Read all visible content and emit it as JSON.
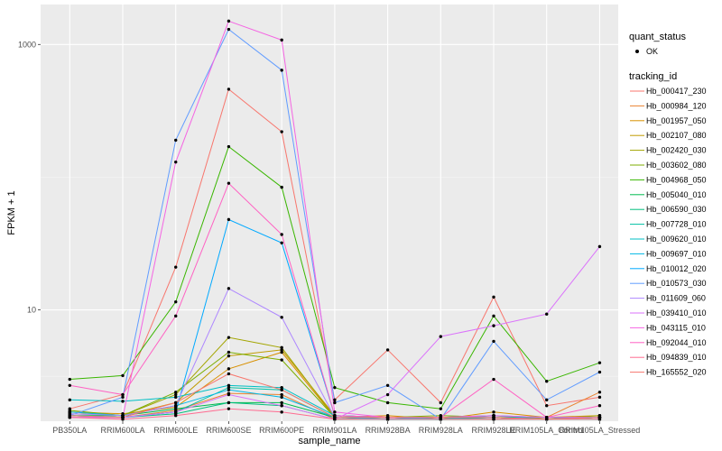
{
  "chart_data": {
    "type": "line",
    "xlabel": "sample_name",
    "ylabel": "FPKM + 1",
    "y_scale": "log10",
    "ylim": [
      1.45,
      2000
    ],
    "y_ticks": [
      {
        "value": 10,
        "label": "10"
      },
      {
        "value": 1000,
        "label": "1000"
      }
    ],
    "grid": true,
    "legend_position": "right",
    "categories": [
      "PB350LA",
      "RRIM600LA",
      "RRIM600LE",
      "RRIM600SE",
      "RRIM600PE",
      "RRIM901LA",
      "RRIM928BA",
      "RRIM928LA",
      "RRIM928LE",
      "RRIM105LA_Control",
      "RRIM105LA_Stressed"
    ],
    "quant_status_legend": {
      "title": "quant_status",
      "items": [
        "OK"
      ]
    },
    "legend_title": "tracking_id",
    "series": [
      {
        "name": "Hb_000417_230",
        "color": "#F8766D",
        "values": [
          1.8,
          2.3,
          21.0,
          460,
          220,
          2.1,
          5.0,
          2.0,
          12.5,
          1.9,
          2.2
        ]
      },
      {
        "name": "Hb_000984_120",
        "color": "#EA8331",
        "values": [
          1.6,
          1.55,
          1.75,
          2.35,
          2.3,
          1.5,
          1.55,
          1.5,
          1.5,
          1.55,
          2.4
        ]
      },
      {
        "name": "Hb_001957_050",
        "color": "#D89000",
        "values": [
          1.7,
          1.65,
          1.85,
          3.6,
          4.8,
          1.55,
          1.6,
          1.5,
          1.7,
          1.55,
          1.6
        ]
      },
      {
        "name": "Hb_002107_080",
        "color": "#C09B00",
        "values": [
          1.65,
          1.6,
          2.0,
          4.5,
          5.0,
          1.6,
          1.55,
          1.55,
          1.6,
          1.5,
          1.55
        ]
      },
      {
        "name": "Hb_002420_030",
        "color": "#A3A500",
        "values": [
          1.7,
          1.6,
          2.3,
          6.2,
          5.2,
          1.55,
          1.55,
          1.55,
          1.55,
          1.5,
          1.6
        ]
      },
      {
        "name": "Hb_003602_080",
        "color": "#7CAE00",
        "values": [
          1.75,
          1.6,
          2.4,
          4.8,
          4.2,
          1.55,
          1.55,
          1.6,
          1.55,
          1.55,
          1.55
        ]
      },
      {
        "name": "Hb_004968_050",
        "color": "#39B600",
        "values": [
          3.0,
          3.2,
          11.5,
          170,
          84,
          2.6,
          2.0,
          1.8,
          9.0,
          2.9,
          4.0
        ]
      },
      {
        "name": "Hb_005040_010",
        "color": "#00BB4E",
        "values": [
          1.6,
          1.6,
          1.8,
          2.0,
          2.0,
          1.55,
          1.55,
          1.5,
          1.55,
          1.5,
          1.55
        ]
      },
      {
        "name": "Hb_006590_030",
        "color": "#00BF7D",
        "values": [
          1.55,
          1.55,
          1.65,
          2.0,
          1.9,
          1.5,
          1.5,
          1.5,
          1.5,
          1.5,
          1.5
        ]
      },
      {
        "name": "Hb_007728_010",
        "color": "#00C1A3",
        "values": [
          1.6,
          1.55,
          1.7,
          2.6,
          2.5,
          1.55,
          1.5,
          1.5,
          1.55,
          1.5,
          1.55
        ]
      },
      {
        "name": "Hb_009620_010",
        "color": "#00BFC4",
        "values": [
          2.1,
          2.05,
          2.2,
          2.7,
          2.6,
          1.6,
          1.55,
          1.5,
          1.6,
          1.5,
          1.55
        ]
      },
      {
        "name": "Hb_009697_010",
        "color": "#00B8E5",
        "values": [
          1.7,
          1.6,
          1.9,
          2.5,
          2.2,
          1.55,
          1.5,
          1.55,
          1.55,
          1.5,
          1.55
        ]
      },
      {
        "name": "Hb_010012_020",
        "color": "#00A9FF",
        "values": [
          1.6,
          1.55,
          1.7,
          48,
          32,
          1.6,
          1.55,
          1.55,
          1.6,
          1.55,
          1.55
        ]
      },
      {
        "name": "Hb_010573_030",
        "color": "#619CFF",
        "values": [
          1.6,
          2.2,
          190,
          1300,
          640,
          2.0,
          2.7,
          1.5,
          5.8,
          2.1,
          3.4
        ]
      },
      {
        "name": "Hb_011609_060",
        "color": "#AE87FF",
        "values": [
          1.65,
          1.6,
          1.9,
          14.5,
          8.8,
          1.55,
          1.55,
          1.55,
          1.55,
          1.5,
          1.55
        ]
      },
      {
        "name": "Hb_039410_010",
        "color": "#DB72FB",
        "values": [
          1.55,
          1.55,
          1.7,
          2.3,
          1.9,
          1.5,
          2.3,
          6.3,
          7.6,
          9.3,
          30
        ]
      },
      {
        "name": "Hb_043115_010",
        "color": "#F564E3",
        "values": [
          1.55,
          1.55,
          130,
          1500,
          1080,
          1.7,
          1.55,
          1.55,
          1.6,
          1.55,
          1.55
        ]
      },
      {
        "name": "Hb_092044_010",
        "color": "#FF61C3",
        "values": [
          2.7,
          2.3,
          9.0,
          90,
          37,
          1.6,
          1.55,
          1.55,
          3.0,
          1.55,
          1.9
        ]
      },
      {
        "name": "Hb_094839_010",
        "color": "#FF6C91",
        "values": [
          1.55,
          1.5,
          1.6,
          1.8,
          1.7,
          1.5,
          1.5,
          1.5,
          1.5,
          1.5,
          1.5
        ]
      },
      {
        "name": "Hb_165552_020",
        "color": "#F8766D",
        "values": [
          1.6,
          1.55,
          2.0,
          3.3,
          2.5,
          1.55,
          1.55,
          1.55,
          1.55,
          1.5,
          1.55
        ]
      }
    ]
  }
}
